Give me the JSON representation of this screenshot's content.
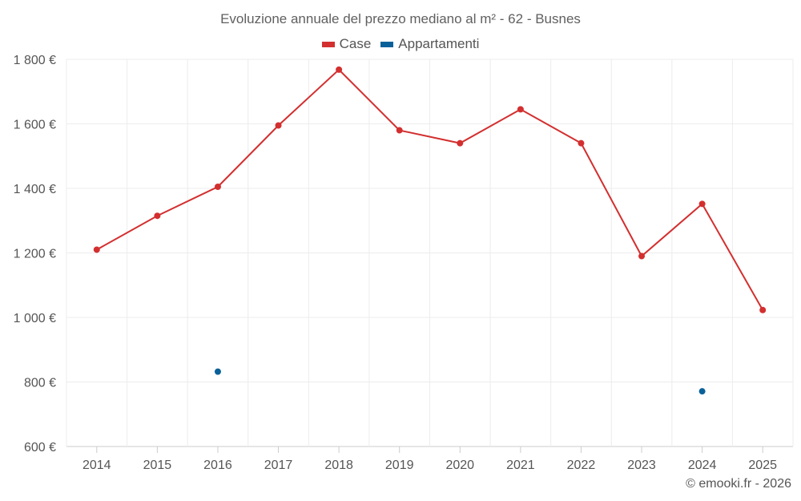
{
  "chart_data": {
    "type": "line",
    "title": "Evoluzione annuale del prezzo mediano al m² - 62 - Busnes",
    "categories": [
      "2014",
      "2015",
      "2016",
      "2017",
      "2018",
      "2019",
      "2020",
      "2021",
      "2022",
      "2023",
      "2024",
      "2025"
    ],
    "series": [
      {
        "name": "Case",
        "color": "#d32f2f",
        "values": [
          1210,
          1315,
          1405,
          1595,
          1768,
          1580,
          1540,
          1645,
          1540,
          1190,
          1352,
          1023
        ]
      },
      {
        "name": "Appartamenti",
        "color": "#0a6199",
        "values": [
          null,
          null,
          832,
          null,
          null,
          null,
          null,
          null,
          null,
          null,
          771,
          null
        ]
      }
    ],
    "ylim": [
      600,
      1800
    ],
    "yticks": [
      600,
      800,
      1000,
      1200,
      1400,
      1600,
      1800
    ],
    "ytick_labels": [
      "600 €",
      "800 €",
      "1 000 €",
      "1 200 €",
      "1 400 €",
      "1 600 €",
      "1 800 €"
    ],
    "grid": true
  },
  "legend": [
    {
      "label": "Case",
      "color": "#d32f2f"
    },
    {
      "label": "Appartamenti",
      "color": "#0a6199"
    }
  ],
  "credit": "© emooki.fr - 2026"
}
